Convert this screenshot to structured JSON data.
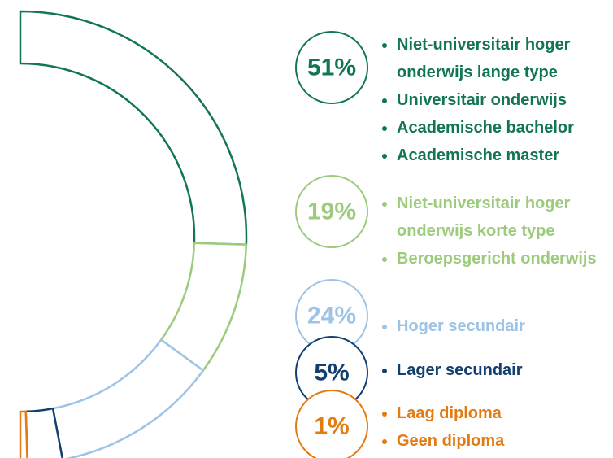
{
  "chart_data": {
    "type": "donut",
    "values": [
      51,
      19,
      24,
      5,
      1
    ],
    "value_labels": [
      "51%",
      "19%",
      "24%",
      "5%",
      "1%"
    ],
    "colors": [
      "#127553",
      "#9ccb7c",
      "#9dc4e6",
      "#123f6e",
      "#e27c12"
    ],
    "categories": [
      [
        "Niet-universitair hoger onderwijs lange type",
        "Universitair onderwijs",
        "Academische bachelor",
        "Academische master"
      ],
      [
        "Niet-universitair hoger onderwijs korte type",
        "Beroepsgericht onderwijs"
      ],
      [
        "Hoger secundair"
      ],
      [
        "Lager secundair"
      ],
      [
        "Laag diploma",
        "Geen diploma"
      ]
    ]
  }
}
